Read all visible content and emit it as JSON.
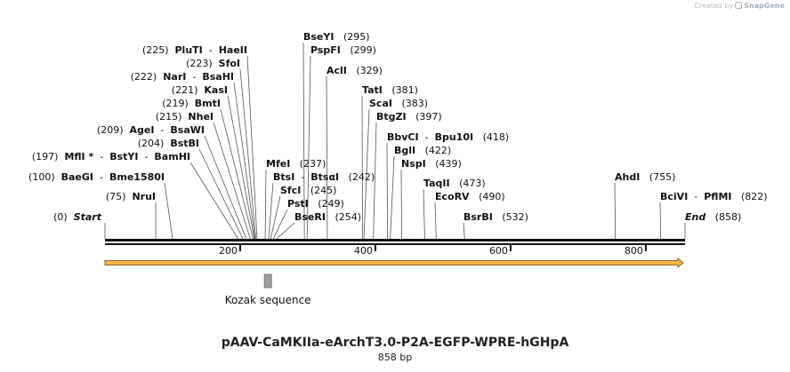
{
  "credit": {
    "text": "Created by",
    "brand": "SnapGene"
  },
  "map": {
    "title": "pAAV-CaMKIIa-eArchT3.0-P2A-EGFP-WPRE-hGHpA",
    "length_label": "858 bp",
    "sequence_length": 858,
    "colors": {
      "backbone": "#111111",
      "arrow_fill": "#f6b74a",
      "arrow_stroke": "#8a6a2e",
      "feature_box": "#9e9e9e",
      "line": "#555555"
    },
    "ticks": [
      {
        "value": 200,
        "label": "200"
      },
      {
        "value": 400,
        "label": "400"
      },
      {
        "value": 600,
        "label": "600"
      },
      {
        "value": 800,
        "label": "800"
      }
    ],
    "features": [
      {
        "name": "Kozak sequence",
        "position": 241
      }
    ],
    "sites": [
      {
        "pos": 0,
        "pos_label": "(0)",
        "names": [
          "Start"
        ],
        "italic": true,
        "left_pos": true
      },
      {
        "pos": 75,
        "pos_label": "(75)",
        "names": [
          "NruI"
        ],
        "left_pos": true
      },
      {
        "pos": 100,
        "pos_label": "(100)",
        "names": [
          "BaeGI",
          "Bme1580I"
        ],
        "left_pos": true
      },
      {
        "pos": 197,
        "pos_label": "(197)",
        "names": [
          "MflI *",
          "BstYI",
          "BamHI"
        ],
        "left_pos": true
      },
      {
        "pos": 204,
        "pos_label": "(204)",
        "names": [
          "BstBI"
        ],
        "left_pos": true
      },
      {
        "pos": 209,
        "pos_label": "(209)",
        "names": [
          "AgeI",
          "BsaWI"
        ],
        "left_pos": true
      },
      {
        "pos": 215,
        "pos_label": "(215)",
        "names": [
          "NheI"
        ],
        "left_pos": true
      },
      {
        "pos": 219,
        "pos_label": "(219)",
        "names": [
          "BmtI"
        ],
        "left_pos": true
      },
      {
        "pos": 221,
        "pos_label": "(221)",
        "names": [
          "KasI"
        ],
        "left_pos": true
      },
      {
        "pos": 222,
        "pos_label": "(222)",
        "names": [
          "NarI",
          "BsaHI"
        ],
        "left_pos": true
      },
      {
        "pos": 223,
        "pos_label": "(223)",
        "names": [
          "SfoI"
        ],
        "left_pos": true
      },
      {
        "pos": 225,
        "pos_label": "(225)",
        "names": [
          "PluTI",
          "HaeII"
        ],
        "left_pos": true
      },
      {
        "pos": 237,
        "pos_label": "(237)",
        "names": [
          "MfeI"
        ],
        "left_pos": false
      },
      {
        "pos": 242,
        "pos_label": "(242)",
        "names": [
          "BtsI",
          "BtsαI"
        ],
        "left_pos": false
      },
      {
        "pos": 245,
        "pos_label": "(245)",
        "names": [
          "SfcI"
        ],
        "left_pos": false
      },
      {
        "pos": 249,
        "pos_label": "(249)",
        "names": [
          "PstI"
        ],
        "left_pos": false
      },
      {
        "pos": 254,
        "pos_label": "(254)",
        "names": [
          "BseRI"
        ],
        "left_pos": false
      },
      {
        "pos": 295,
        "pos_label": "(295)",
        "names": [
          "BseYI"
        ],
        "left_pos": false
      },
      {
        "pos": 299,
        "pos_label": "(299)",
        "names": [
          "PspFI"
        ],
        "left_pos": false
      },
      {
        "pos": 329,
        "pos_label": "(329)",
        "names": [
          "AclI"
        ],
        "left_pos": false
      },
      {
        "pos": 381,
        "pos_label": "(381)",
        "names": [
          "TatI"
        ],
        "left_pos": false
      },
      {
        "pos": 383,
        "pos_label": "(383)",
        "names": [
          "ScaI"
        ],
        "left_pos": false
      },
      {
        "pos": 397,
        "pos_label": "(397)",
        "names": [
          "BtgZI"
        ],
        "left_pos": false
      },
      {
        "pos": 418,
        "pos_label": "(418)",
        "names": [
          "BbvCI",
          "Bpu10I"
        ],
        "left_pos": false
      },
      {
        "pos": 422,
        "pos_label": "(422)",
        "names": [
          "BglI"
        ],
        "left_pos": false
      },
      {
        "pos": 439,
        "pos_label": "(439)",
        "names": [
          "NspI"
        ],
        "left_pos": false
      },
      {
        "pos": 473,
        "pos_label": "(473)",
        "names": [
          "TaqII"
        ],
        "left_pos": false
      },
      {
        "pos": 490,
        "pos_label": "(490)",
        "names": [
          "EcoRV"
        ],
        "left_pos": false
      },
      {
        "pos": 532,
        "pos_label": "(532)",
        "names": [
          "BsrBI"
        ],
        "left_pos": false
      },
      {
        "pos": 755,
        "pos_label": "(755)",
        "names": [
          "AhdI"
        ],
        "left_pos": false
      },
      {
        "pos": 822,
        "pos_label": "(822)",
        "names": [
          "BciVI",
          "PflMI"
        ],
        "left_pos": false
      },
      {
        "pos": 858,
        "pos_label": "(858)",
        "names": [
          "End"
        ],
        "italic": true,
        "left_pos": false
      }
    ]
  }
}
